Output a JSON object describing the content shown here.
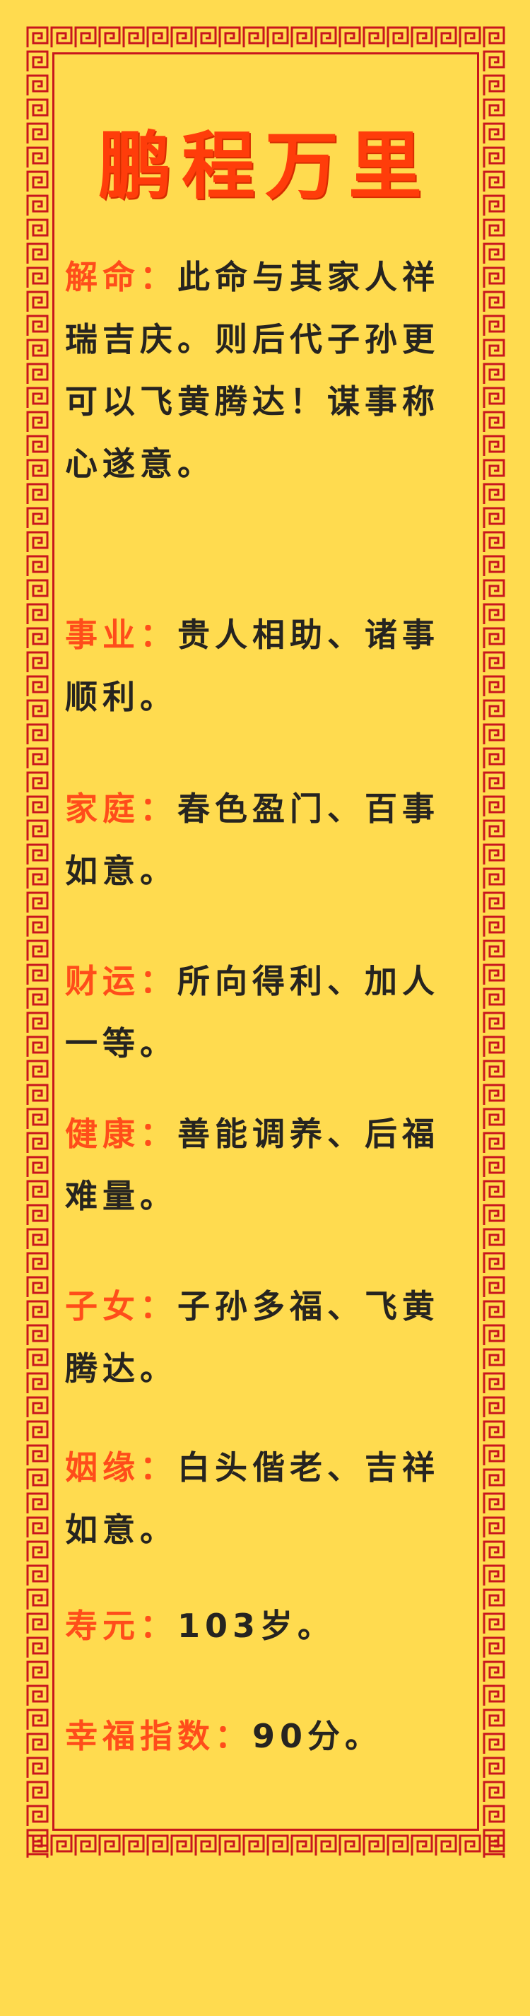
{
  "title": "鹏程万里",
  "colors": {
    "background": "#ffdb4f",
    "border": "#c8161d",
    "title": "#ff3d0a",
    "label": "#ff4d1a",
    "text": "#262420"
  },
  "entries": [
    {
      "label": "解命：",
      "text": "此命与其家人祥瑞吉庆。则后代子孙更可以飞黄腾达！谋事称心遂意。"
    },
    {
      "label": "事业：",
      "text": "贵人相助、诸事顺利。"
    },
    {
      "label": "家庭：",
      "text": "春色盈门、百事如意。"
    },
    {
      "label": "财运：",
      "text": "所向得利、加人一等。"
    },
    {
      "label": "健康：",
      "text": "善能调养、后福难量。"
    },
    {
      "label": "子女：",
      "text": "子孙多福、飞黄腾达。"
    },
    {
      "label": "姻缘：",
      "text": "白头偕老、吉祥如意。"
    },
    {
      "label": "寿元：",
      "text": "103岁。"
    },
    {
      "label": "幸福指数：",
      "text": "90分。"
    }
  ]
}
